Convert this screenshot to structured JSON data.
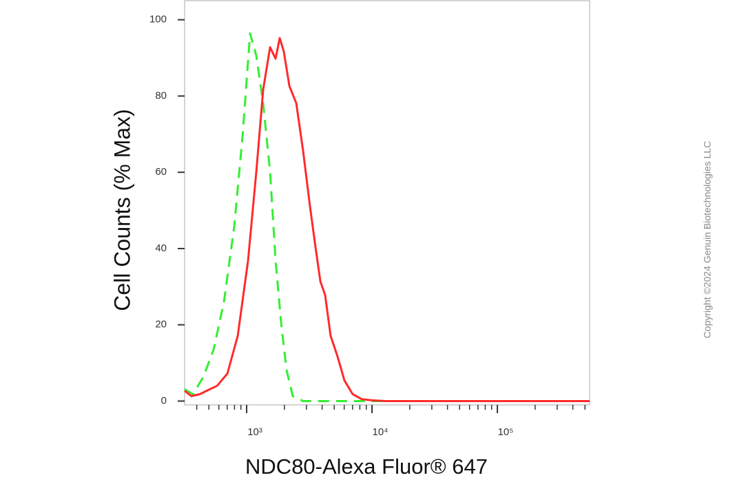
{
  "chart_data": {
    "type": "line",
    "xlabel": "NDC80-Alexa Fluor® 647",
    "ylabel": "Cell Counts (% Max)",
    "watermark": "Copyright ©2024 Genuin Biotechnologies LLC",
    "xscale": "log",
    "xlim": [
      320,
      544500
    ],
    "ylim": [
      -1,
      105
    ],
    "xticks": [
      {
        "value": 1000,
        "label": "10³"
      },
      {
        "value": 10000,
        "label": "10⁴"
      },
      {
        "value": 100000,
        "label": "10⁵"
      }
    ],
    "xminorticks": [
      400,
      500,
      600,
      700,
      800,
      900,
      2000,
      3000,
      4000,
      5000,
      6000,
      7000,
      8000,
      9000,
      20000,
      30000,
      40000,
      50000,
      60000,
      70000,
      80000,
      90000,
      200000,
      300000,
      400000,
      500000
    ],
    "yticks": [
      0,
      20,
      40,
      60,
      80,
      100
    ],
    "grid": false,
    "series": [
      {
        "color": "#ff2a2a",
        "dash": false,
        "x": [
          320,
          363,
          423,
          480,
          581,
          702,
          849,
          1026,
          1194,
          1355,
          1538,
          1702,
          1836,
          1981,
          2193,
          2489,
          2823,
          3200,
          3541,
          3873,
          4227,
          4677,
          5309,
          6026,
          7015,
          8272,
          10000,
          12880,
          21380,
          75680,
          544500
        ],
        "values": [
          2.7,
          1.3,
          1.8,
          2.7,
          4,
          7.2,
          17.1,
          36.8,
          60.1,
          81.7,
          92.8,
          89.8,
          95.2,
          91.6,
          82.6,
          78.1,
          65.5,
          51.1,
          40.4,
          31.4,
          27.8,
          17.1,
          11.7,
          5.4,
          1.8,
          0.5,
          0.2,
          0,
          0,
          0,
          0
        ]
      },
      {
        "color": "#33ee33",
        "dash": true,
        "x": [
          320,
          373,
          451,
          545,
          659,
          796,
          927,
          1065,
          1194,
          1355,
          1538,
          1702,
          1883,
          2083,
          2333,
          2823,
          6026,
          544500
        ],
        "values": [
          3.1,
          1.8,
          6.3,
          13.5,
          26,
          45.8,
          69.3,
          96.4,
          90.6,
          78,
          60.1,
          36.8,
          20.6,
          8.1,
          1.3,
          0,
          0,
          0
        ]
      }
    ]
  }
}
